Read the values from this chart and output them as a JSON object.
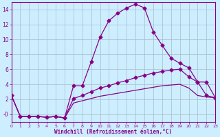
{
  "xlabel": "Windchill (Refroidissement éolien,°C)",
  "bg_color": "#cceeff",
  "grid_color": "#aabbcc",
  "line_color": "#880088",
  "xlim": [
    0,
    23
  ],
  "ylim": [
    -1,
    15
  ],
  "xticks": [
    0,
    1,
    2,
    3,
    4,
    5,
    6,
    7,
    8,
    9,
    10,
    11,
    12,
    13,
    14,
    15,
    16,
    17,
    18,
    19,
    20,
    21,
    22,
    23
  ],
  "yticks": [
    0,
    2,
    4,
    6,
    8,
    10,
    12,
    14
  ],
  "ytick_labels": [
    "-0",
    "2",
    "4",
    "6",
    "8",
    "10",
    "12",
    "14"
  ],
  "line1_x": [
    0,
    1,
    2,
    3,
    4,
    5,
    6,
    7,
    8,
    9,
    10,
    11,
    12,
    13,
    14,
    15,
    16,
    17,
    18,
    19,
    20,
    21,
    22,
    23
  ],
  "line1_y": [
    2.5,
    -0.3,
    -0.3,
    -0.3,
    -0.4,
    -0.3,
    -0.5,
    3.8,
    3.8,
    7.0,
    10.3,
    12.5,
    13.5,
    14.2,
    14.7,
    14.2,
    11.0,
    9.2,
    7.5,
    6.8,
    6.2,
    4.3,
    4.3,
    2.2
  ],
  "line2_x": [
    0,
    1,
    2,
    3,
    4,
    5,
    6,
    7,
    8,
    9,
    10,
    11,
    12,
    13,
    14,
    15,
    16,
    17,
    18,
    19,
    20,
    21,
    22,
    23
  ],
  "line2_y": [
    2.5,
    -0.3,
    -0.3,
    -0.3,
    -0.4,
    -0.3,
    -0.5,
    2.1,
    2.5,
    3.0,
    3.5,
    3.8,
    4.2,
    4.5,
    4.9,
    5.2,
    5.5,
    5.7,
    5.9,
    6.0,
    5.0,
    4.3,
    2.5,
    2.2
  ],
  "line3_x": [
    0,
    1,
    2,
    3,
    4,
    5,
    6,
    7,
    8,
    9,
    10,
    11,
    12,
    13,
    14,
    15,
    16,
    17,
    18,
    19,
    20,
    21,
    22,
    23
  ],
  "line3_y": [
    2.5,
    -0.3,
    -0.3,
    -0.3,
    -0.4,
    -0.3,
    -0.5,
    1.5,
    1.8,
    2.1,
    2.4,
    2.6,
    2.8,
    3.0,
    3.2,
    3.4,
    3.6,
    3.8,
    3.9,
    4.0,
    3.5,
    2.5,
    2.3,
    2.2
  ]
}
